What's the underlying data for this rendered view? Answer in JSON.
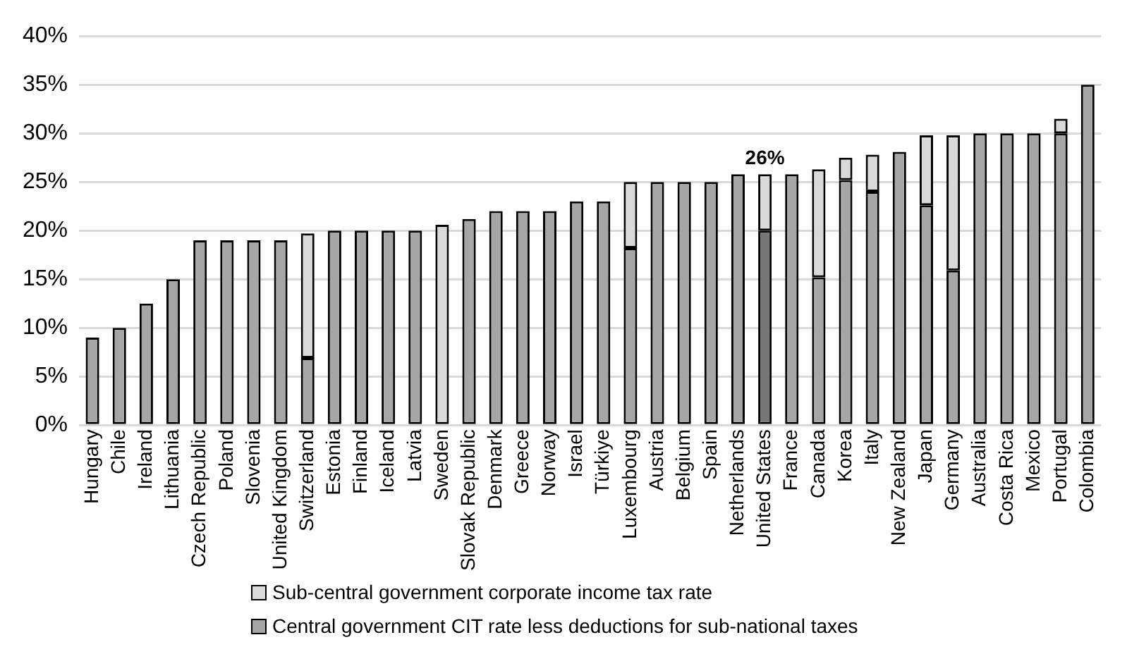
{
  "chart_data": {
    "type": "bar",
    "stacked": true,
    "legend": "bottom",
    "grid": "y",
    "categories": [
      "Hungary",
      "Chile",
      "Ireland",
      "Lithuania",
      "Czech Republic",
      "Poland",
      "Slovenia",
      "United Kingdom",
      "Switzerland",
      "Estonia",
      "Finland",
      "Iceland",
      "Latvia",
      "Sweden",
      "Slovak Republic",
      "Denmark",
      "Greece",
      "Norway",
      "Israel",
      "Türkiye",
      "Luxembourg",
      "Austria",
      "Belgium",
      "Spain",
      "Netherlands",
      "United States",
      "France",
      "Canada",
      "Korea",
      "Italy",
      "New Zealand",
      "Japan",
      "Germany",
      "Australia",
      "Costa Rica",
      "Mexico",
      "Portugal",
      "Colombia"
    ],
    "series": [
      {
        "name": "Central government CIT rate less deductions for sub-national taxes",
        "color": "#a6a6a6",
        "colors": [
          "#a6a6a6",
          "#a6a6a6",
          "#a6a6a6",
          "#a6a6a6",
          "#a6a6a6",
          "#a6a6a6",
          "#a6a6a6",
          "#a6a6a6",
          "#a6a6a6",
          "#a6a6a6",
          "#a6a6a6",
          "#a6a6a6",
          "#a6a6a6",
          "#d9d9d9",
          "#a6a6a6",
          "#a6a6a6",
          "#a6a6a6",
          "#a6a6a6",
          "#a6a6a6",
          "#a6a6a6",
          "#a6a6a6",
          "#a6a6a6",
          "#a6a6a6",
          "#a6a6a6",
          "#a6a6a6",
          "#767676",
          "#a6a6a6",
          "#a6a6a6",
          "#a6a6a6",
          "#a6a6a6",
          "#a6a6a6",
          "#a6a6a6",
          "#a6a6a6",
          "#a6a6a6",
          "#a6a6a6",
          "#a6a6a6",
          "#a6a6a6",
          "#a6a6a6"
        ],
        "values": [
          9,
          10,
          12.5,
          15,
          19,
          19,
          19,
          19,
          6.9,
          20,
          20,
          20,
          20,
          20.6,
          21.2,
          22,
          22,
          22,
          23,
          23,
          18.2,
          25,
          25,
          25,
          25.8,
          20,
          25.8,
          15.2,
          25.2,
          24,
          28.1,
          22.6,
          15.9,
          30,
          30,
          30,
          30,
          35
        ]
      },
      {
        "name": "Sub-central government corporate income tax rate",
        "color": "#d9d9d9",
        "values": [
          null,
          null,
          null,
          null,
          null,
          null,
          null,
          null,
          12.8,
          null,
          null,
          null,
          null,
          null,
          null,
          null,
          null,
          null,
          null,
          null,
          6.8,
          null,
          null,
          null,
          null,
          5.8,
          null,
          11.1,
          2.3,
          3.8,
          null,
          7.2,
          13.9,
          null,
          null,
          null,
          1.5,
          null
        ]
      }
    ],
    "ylim": [
      0,
      40
    ],
    "yticks": [
      {
        "value": 0,
        "label": "0%"
      },
      {
        "value": 5,
        "label": "5%"
      },
      {
        "value": 10,
        "label": "10%"
      },
      {
        "value": 15,
        "label": "15%"
      },
      {
        "value": 20,
        "label": "20%"
      },
      {
        "value": 25,
        "label": "25%"
      },
      {
        "value": 30,
        "label": "30%"
      },
      {
        "value": 35,
        "label": "35%"
      },
      {
        "value": 40,
        "label": "40%"
      }
    ],
    "annotations": [
      {
        "text": "26%",
        "x": "United States",
        "y": 25.8
      }
    ]
  }
}
